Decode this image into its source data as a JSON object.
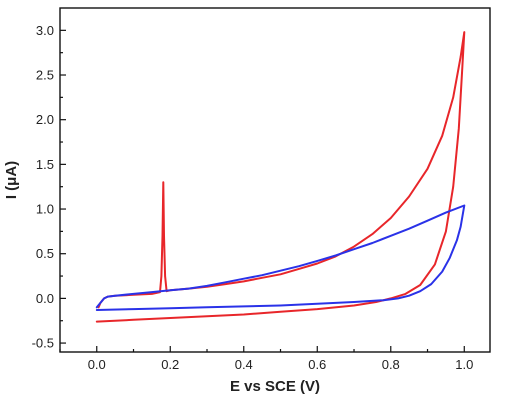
{
  "chart_data": {
    "type": "line",
    "title": "",
    "xlabel": "E vs SCE (V)",
    "ylabel": "I (μA)",
    "xlim": [
      -0.1,
      1.07
    ],
    "ylim": [
      -0.6,
      3.25
    ],
    "grid": false,
    "x_ticks": [
      0.0,
      0.2,
      0.4,
      0.6,
      0.8,
      1.0
    ],
    "x_tick_labels": [
      "0.0",
      "0.2",
      "0.4",
      "0.6",
      "0.8",
      "1.0"
    ],
    "y_ticks": [
      -0.5,
      0.0,
      0.5,
      1.0,
      1.5,
      2.0,
      2.5,
      3.0
    ],
    "y_tick_labels": [
      "-0.5",
      "0.0",
      "0.5",
      "1.0",
      "1.5",
      "2.0",
      "2.5",
      "3.0"
    ],
    "series": [
      {
        "color": "#e8262a",
        "points": [
          [
            0.0,
            -0.26
          ],
          [
            0.1,
            -0.24
          ],
          [
            0.2,
            -0.22
          ],
          [
            0.3,
            -0.2
          ],
          [
            0.4,
            -0.18
          ],
          [
            0.5,
            -0.15
          ],
          [
            0.6,
            -0.12
          ],
          [
            0.7,
            -0.08
          ],
          [
            0.76,
            -0.04
          ],
          [
            0.8,
            0.0
          ],
          [
            0.84,
            0.05
          ],
          [
            0.88,
            0.15
          ],
          [
            0.92,
            0.38
          ],
          [
            0.95,
            0.75
          ],
          [
            0.97,
            1.25
          ],
          [
            0.985,
            1.9
          ],
          [
            0.995,
            2.6
          ],
          [
            1.0,
            2.98
          ],
          [
            0.99,
            2.7
          ],
          [
            0.97,
            2.25
          ],
          [
            0.94,
            1.82
          ],
          [
            0.9,
            1.45
          ],
          [
            0.85,
            1.14
          ],
          [
            0.8,
            0.9
          ],
          [
            0.75,
            0.72
          ],
          [
            0.7,
            0.58
          ],
          [
            0.65,
            0.47
          ],
          [
            0.6,
            0.39
          ],
          [
            0.55,
            0.33
          ],
          [
            0.5,
            0.27
          ],
          [
            0.45,
            0.23
          ],
          [
            0.4,
            0.19
          ],
          [
            0.35,
            0.16
          ],
          [
            0.3,
            0.13
          ],
          [
            0.25,
            0.11
          ],
          [
            0.2,
            0.09
          ],
          [
            0.19,
            0.08
          ],
          [
            0.186,
            0.25
          ],
          [
            0.183,
            0.7
          ],
          [
            0.181,
            1.3
          ],
          [
            0.179,
            0.7
          ],
          [
            0.176,
            0.25
          ],
          [
            0.172,
            0.07
          ],
          [
            0.15,
            0.05
          ],
          [
            0.1,
            0.04
          ],
          [
            0.05,
            0.03
          ],
          [
            0.03,
            0.02
          ],
          [
            0.02,
            0.0
          ],
          [
            0.01,
            -0.05
          ],
          [
            0.005,
            -0.1
          ]
        ]
      },
      {
        "color": "#2a32e8",
        "points": [
          [
            0.0,
            -0.13
          ],
          [
            0.1,
            -0.12
          ],
          [
            0.2,
            -0.11
          ],
          [
            0.3,
            -0.1
          ],
          [
            0.4,
            -0.09
          ],
          [
            0.5,
            -0.08
          ],
          [
            0.6,
            -0.06
          ],
          [
            0.7,
            -0.04
          ],
          [
            0.78,
            -0.02
          ],
          [
            0.82,
            0.0
          ],
          [
            0.85,
            0.03
          ],
          [
            0.88,
            0.08
          ],
          [
            0.91,
            0.16
          ],
          [
            0.94,
            0.3
          ],
          [
            0.96,
            0.45
          ],
          [
            0.98,
            0.65
          ],
          [
            0.99,
            0.8
          ],
          [
            1.0,
            1.04
          ],
          [
            0.95,
            0.96
          ],
          [
            0.9,
            0.87
          ],
          [
            0.85,
            0.78
          ],
          [
            0.8,
            0.7
          ],
          [
            0.75,
            0.62
          ],
          [
            0.7,
            0.55
          ],
          [
            0.65,
            0.48
          ],
          [
            0.6,
            0.42
          ],
          [
            0.55,
            0.36
          ],
          [
            0.5,
            0.31
          ],
          [
            0.45,
            0.26
          ],
          [
            0.4,
            0.22
          ],
          [
            0.35,
            0.18
          ],
          [
            0.3,
            0.14
          ],
          [
            0.25,
            0.11
          ],
          [
            0.2,
            0.09
          ],
          [
            0.15,
            0.07
          ],
          [
            0.1,
            0.05
          ],
          [
            0.05,
            0.03
          ],
          [
            0.03,
            0.02
          ],
          [
            0.02,
            0.0
          ],
          [
            0.01,
            -0.05
          ],
          [
            0.0,
            -0.1
          ]
        ]
      }
    ]
  }
}
